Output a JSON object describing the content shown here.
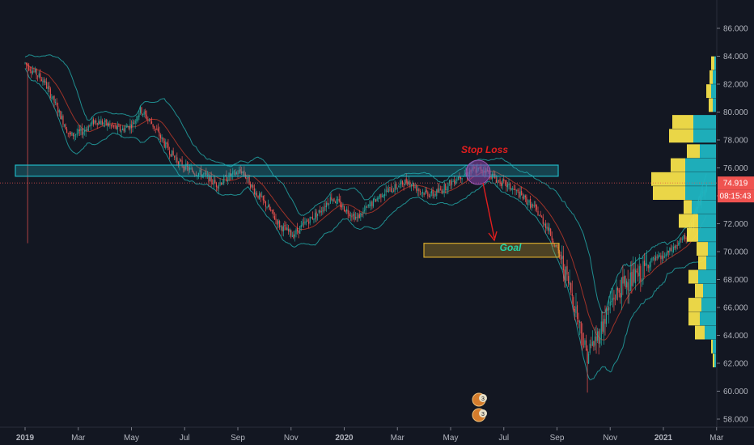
{
  "chart_data": {
    "type": "candlestick",
    "y_ticks": [
      "58.000",
      "60.000",
      "62.000",
      "64.000",
      "66.000",
      "68.000",
      "70.000",
      "72.000",
      "74.000",
      "76.000",
      "78.000",
      "80.000",
      "82.000",
      "84.000",
      "86.000"
    ],
    "ylim": [
      57.5,
      87.5
    ],
    "x_ticks": [
      "2019",
      "Mar",
      "May",
      "Jul",
      "Sep",
      "Nov",
      "2020",
      "Mar",
      "May",
      "Jul",
      "Sep",
      "Nov",
      "2021",
      "Mar"
    ],
    "current_price": "74.919",
    "countdown": "08:15:43",
    "annotations": {
      "stop_loss_label": "Stop Loss",
      "goal_label": "Goal",
      "stop_zone": [
        75.4,
        76.2
      ],
      "goal_zone": [
        69.6,
        70.6
      ],
      "dotted_line_price": 74.919
    },
    "price_path": [
      [
        0,
        83.5
      ],
      [
        0.06,
        82.2
      ],
      [
        0.1,
        80.3
      ],
      [
        0.14,
        78.3
      ],
      [
        0.18,
        78.6
      ],
      [
        0.22,
        79.4
      ],
      [
        0.26,
        79.1
      ],
      [
        0.3,
        78.7
      ],
      [
        0.34,
        79.2
      ],
      [
        0.36,
        80.2
      ],
      [
        0.4,
        79.1
      ],
      [
        0.44,
        77.6
      ],
      [
        0.48,
        76.4
      ],
      [
        0.52,
        75.8
      ],
      [
        0.56,
        75.5
      ],
      [
        0.6,
        74.8
      ],
      [
        0.64,
        75.4
      ],
      [
        0.68,
        75.8
      ],
      [
        0.72,
        74.3
      ],
      [
        0.76,
        73.2
      ],
      [
        0.8,
        71.8
      ],
      [
        0.84,
        71.2
      ],
      [
        0.88,
        72.1
      ],
      [
        0.92,
        72.8
      ],
      [
        0.96,
        73.9
      ],
      [
        1.0,
        73.1
      ],
      [
        1.04,
        72.4
      ],
      [
        1.08,
        73.3
      ],
      [
        1.12,
        74.2
      ],
      [
        1.16,
        74.6
      ],
      [
        1.2,
        75.1
      ],
      [
        1.24,
        74.3
      ],
      [
        1.28,
        74.1
      ],
      [
        1.32,
        74.7
      ],
      [
        1.36,
        75.4
      ],
      [
        1.4,
        75.8
      ],
      [
        1.44,
        75.9
      ],
      [
        1.48,
        75.1
      ],
      [
        1.52,
        74.6
      ],
      [
        1.56,
        73.9
      ],
      [
        1.6,
        73.0
      ],
      [
        1.64,
        71.6
      ],
      [
        1.68,
        69.4
      ],
      [
        1.72,
        66.4
      ],
      [
        1.76,
        62.6
      ],
      [
        1.8,
        64.2
      ],
      [
        1.84,
        66.6
      ],
      [
        1.88,
        67.8
      ],
      [
        1.92,
        68.2
      ],
      [
        1.96,
        69.3
      ],
      [
        2.0,
        69.6
      ],
      [
        2.04,
        70.4
      ],
      [
        2.08,
        71.3
      ],
      [
        2.12,
        74.0
      ],
      [
        2.14,
        75.2
      ]
    ],
    "volume_profile": [
      {
        "price": 83.5,
        "buy": 2,
        "sell": 4
      },
      {
        "price": 82.5,
        "buy": 4,
        "sell": 4
      },
      {
        "price": 81.5,
        "buy": 6,
        "sell": 6
      },
      {
        "price": 80.5,
        "buy": 4,
        "sell": 5
      },
      {
        "price": 79.3,
        "buy": 28,
        "sell": 26
      },
      {
        "price": 78.3,
        "buy": 28,
        "sell": 30
      },
      {
        "price": 77.2,
        "buy": 20,
        "sell": 16
      },
      {
        "price": 76.2,
        "buy": 38,
        "sell": 18
      },
      {
        "price": 75.2,
        "buy": 38,
        "sell": 42
      },
      {
        "price": 74.2,
        "buy": 38,
        "sell": 40
      },
      {
        "price": 73.2,
        "buy": 30,
        "sell": 10
      },
      {
        "price": 72.2,
        "buy": 22,
        "sell": 24
      },
      {
        "price": 71.2,
        "buy": 22,
        "sell": 14
      },
      {
        "price": 70.2,
        "buy": 10,
        "sell": 14
      },
      {
        "price": 69.2,
        "buy": 12,
        "sell": 10
      },
      {
        "price": 68.2,
        "buy": 22,
        "sell": 12
      },
      {
        "price": 67.2,
        "buy": 16,
        "sell": 10
      },
      {
        "price": 66.2,
        "buy": 18,
        "sell": 16
      },
      {
        "price": 65.2,
        "buy": 20,
        "sell": 14
      },
      {
        "price": 64.2,
        "buy": 14,
        "sell": 12
      },
      {
        "price": 63.2,
        "buy": 4,
        "sell": 2
      },
      {
        "price": 62.2,
        "buy": 2,
        "sell": 2
      }
    ],
    "markers": [
      "3",
      "3"
    ],
    "colors": {
      "up": "#26a69a",
      "down": "#ef5350",
      "bands": "#22a3a3",
      "ma": "#c0392b",
      "stop_zone": "#1fb5c2",
      "goal_zone": "#d4a72c",
      "vp_buy": "#1fb5c2",
      "vp_sell": "#f5e04a",
      "price_label": "#ef5350",
      "axis_text": "#b2b5be",
      "background": "#131722"
    }
  }
}
